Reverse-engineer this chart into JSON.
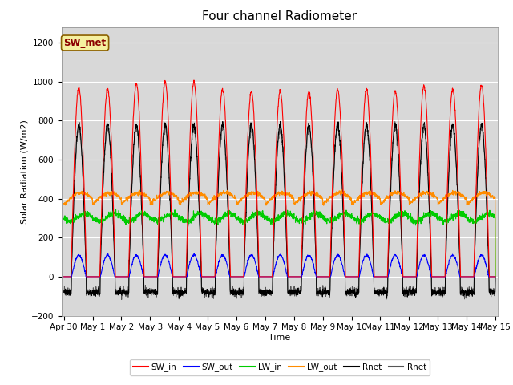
{
  "title": "Four channel Radiometer",
  "xlabel": "Time",
  "ylabel": "Solar Radiation (W/m2)",
  "ylim": [
    -200,
    1280
  ],
  "yticks": [
    -200,
    0,
    200,
    400,
    600,
    800,
    1000,
    1200
  ],
  "fig_bg_color": "#ffffff",
  "plot_bg_color": "#d8d8d8",
  "annotation_text": "SW_met",
  "annotation_bg": "#f5f0a0",
  "annotation_border": "#8b6000",
  "annotation_text_color": "#8b0000",
  "legend_entries": [
    "SW_in",
    "SW_out",
    "LW_in",
    "LW_out",
    "Rnet",
    "Rnet"
  ],
  "legend_colors": [
    "#ff0000",
    "#0000ff",
    "#00cc00",
    "#ff8c00",
    "#000000",
    "#555555"
  ],
  "title_fontsize": 11,
  "axis_label_fontsize": 8,
  "tick_fontsize": 7.5
}
